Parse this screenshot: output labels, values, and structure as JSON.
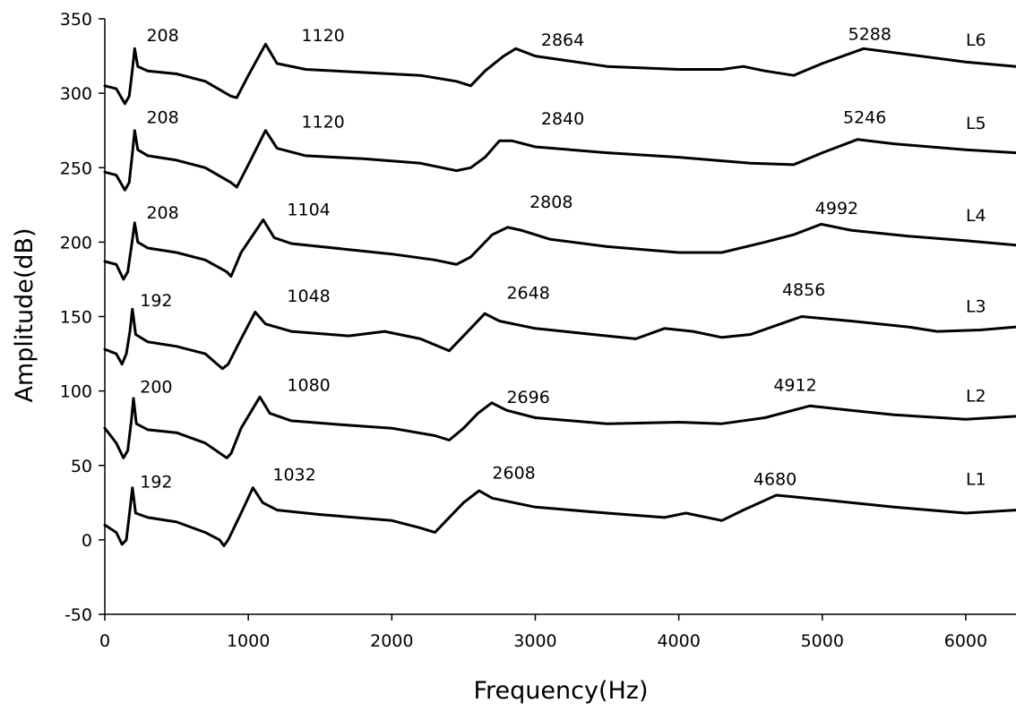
{
  "chart_data": {
    "type": "line",
    "title": "",
    "xlabel": "Frequency(Hz)",
    "ylabel": "Amplitude(dB)",
    "xlim": [
      0,
      6350
    ],
    "ylim": [
      -50,
      350
    ],
    "xticks": [
      0,
      1000,
      2000,
      3000,
      4000,
      5000,
      6000
    ],
    "yticks": [
      -50,
      0,
      50,
      100,
      150,
      200,
      250,
      300,
      350
    ],
    "grid": false,
    "legend": "none",
    "line_color": "#000000",
    "series": [
      {
        "name": "L1",
        "peak_labels": [
          "192",
          "1032",
          "2608",
          "4680"
        ],
        "points": [
          [
            0,
            10
          ],
          [
            80,
            5
          ],
          [
            120,
            -3
          ],
          [
            150,
            0
          ],
          [
            175,
            20
          ],
          [
            192,
            35
          ],
          [
            215,
            18
          ],
          [
            300,
            15
          ],
          [
            500,
            12
          ],
          [
            700,
            5
          ],
          [
            800,
            0
          ],
          [
            830,
            -4
          ],
          [
            860,
            0
          ],
          [
            950,
            18
          ],
          [
            1032,
            35
          ],
          [
            1100,
            25
          ],
          [
            1200,
            20
          ],
          [
            1500,
            17
          ],
          [
            2000,
            13
          ],
          [
            2200,
            8
          ],
          [
            2300,
            5
          ],
          [
            2400,
            15
          ],
          [
            2500,
            25
          ],
          [
            2608,
            33
          ],
          [
            2700,
            28
          ],
          [
            3000,
            22
          ],
          [
            3500,
            18
          ],
          [
            3900,
            15
          ],
          [
            4050,
            18
          ],
          [
            4300,
            13
          ],
          [
            4450,
            20
          ],
          [
            4680,
            30
          ],
          [
            5000,
            27
          ],
          [
            5500,
            22
          ],
          [
            6000,
            18
          ],
          [
            6350,
            20
          ]
        ]
      },
      {
        "name": "L2",
        "peak_labels": [
          "200",
          "1080",
          "2696",
          "4912"
        ],
        "points": [
          [
            0,
            75
          ],
          [
            80,
            65
          ],
          [
            130,
            55
          ],
          [
            160,
            60
          ],
          [
            185,
            80
          ],
          [
            200,
            95
          ],
          [
            220,
            78
          ],
          [
            300,
            74
          ],
          [
            500,
            72
          ],
          [
            700,
            65
          ],
          [
            850,
            55
          ],
          [
            880,
            58
          ],
          [
            950,
            75
          ],
          [
            1080,
            96
          ],
          [
            1150,
            85
          ],
          [
            1300,
            80
          ],
          [
            1700,
            77
          ],
          [
            2000,
            75
          ],
          [
            2300,
            70
          ],
          [
            2400,
            67
          ],
          [
            2500,
            75
          ],
          [
            2600,
            85
          ],
          [
            2696,
            92
          ],
          [
            2800,
            87
          ],
          [
            3000,
            82
          ],
          [
            3500,
            78
          ],
          [
            4000,
            79
          ],
          [
            4300,
            78
          ],
          [
            4600,
            82
          ],
          [
            4912,
            90
          ],
          [
            5200,
            87
          ],
          [
            5500,
            84
          ],
          [
            6000,
            81
          ],
          [
            6350,
            83
          ]
        ]
      },
      {
        "name": "L3",
        "peak_labels": [
          "192",
          "1048",
          "2648",
          "4856"
        ],
        "points": [
          [
            0,
            128
          ],
          [
            80,
            125
          ],
          [
            120,
            118
          ],
          [
            150,
            125
          ],
          [
            175,
            140
          ],
          [
            192,
            155
          ],
          [
            215,
            138
          ],
          [
            300,
            133
          ],
          [
            500,
            130
          ],
          [
            700,
            125
          ],
          [
            820,
            115
          ],
          [
            860,
            118
          ],
          [
            950,
            135
          ],
          [
            1048,
            153
          ],
          [
            1120,
            145
          ],
          [
            1300,
            140
          ],
          [
            1700,
            137
          ],
          [
            1950,
            140
          ],
          [
            2200,
            135
          ],
          [
            2400,
            127
          ],
          [
            2500,
            137
          ],
          [
            2648,
            152
          ],
          [
            2750,
            147
          ],
          [
            3000,
            142
          ],
          [
            3500,
            137
          ],
          [
            3700,
            135
          ],
          [
            3900,
            142
          ],
          [
            4100,
            140
          ],
          [
            4300,
            136
          ],
          [
            4500,
            138
          ],
          [
            4856,
            150
          ],
          [
            5200,
            147
          ],
          [
            5600,
            143
          ],
          [
            5800,
            140
          ],
          [
            6100,
            141
          ],
          [
            6350,
            143
          ]
        ]
      },
      {
        "name": "L4",
        "peak_labels": [
          "208",
          "1104",
          "2808",
          "4992"
        ],
        "points": [
          [
            0,
            187
          ],
          [
            80,
            185
          ],
          [
            130,
            175
          ],
          [
            160,
            180
          ],
          [
            190,
            200
          ],
          [
            208,
            213
          ],
          [
            230,
            200
          ],
          [
            300,
            196
          ],
          [
            500,
            193
          ],
          [
            700,
            188
          ],
          [
            850,
            180
          ],
          [
            880,
            177
          ],
          [
            950,
            193
          ],
          [
            1104,
            215
          ],
          [
            1180,
            203
          ],
          [
            1300,
            199
          ],
          [
            1700,
            195
          ],
          [
            2000,
            192
          ],
          [
            2300,
            188
          ],
          [
            2450,
            185
          ],
          [
            2550,
            190
          ],
          [
            2700,
            205
          ],
          [
            2808,
            210
          ],
          [
            2900,
            208
          ],
          [
            3100,
            202
          ],
          [
            3500,
            197
          ],
          [
            4000,
            193
          ],
          [
            4300,
            193
          ],
          [
            4600,
            200
          ],
          [
            4800,
            205
          ],
          [
            4992,
            212
          ],
          [
            5200,
            208
          ],
          [
            5600,
            204
          ],
          [
            6000,
            201
          ],
          [
            6350,
            198
          ]
        ]
      },
      {
        "name": "L5",
        "peak_labels": [
          "208",
          "1120",
          "2840",
          "5246"
        ],
        "points": [
          [
            0,
            247
          ],
          [
            80,
            245
          ],
          [
            140,
            235
          ],
          [
            170,
            240
          ],
          [
            195,
            262
          ],
          [
            208,
            275
          ],
          [
            230,
            262
          ],
          [
            300,
            258
          ],
          [
            500,
            255
          ],
          [
            700,
            250
          ],
          [
            880,
            240
          ],
          [
            920,
            237
          ],
          [
            1000,
            252
          ],
          [
            1120,
            275
          ],
          [
            1200,
            263
          ],
          [
            1400,
            258
          ],
          [
            1800,
            256
          ],
          [
            2200,
            253
          ],
          [
            2450,
            248
          ],
          [
            2550,
            250
          ],
          [
            2650,
            257
          ],
          [
            2750,
            268
          ],
          [
            2840,
            268
          ],
          [
            3000,
            264
          ],
          [
            3500,
            260
          ],
          [
            4000,
            257
          ],
          [
            4500,
            253
          ],
          [
            4800,
            252
          ],
          [
            5000,
            260
          ],
          [
            5246,
            269
          ],
          [
            5500,
            266
          ],
          [
            6000,
            262
          ],
          [
            6350,
            260
          ]
        ]
      },
      {
        "name": "L6",
        "peak_labels": [
          "208",
          "1120",
          "2864",
          "5288"
        ],
        "points": [
          [
            0,
            305
          ],
          [
            80,
            303
          ],
          [
            140,
            293
          ],
          [
            170,
            298
          ],
          [
            195,
            318
          ],
          [
            208,
            330
          ],
          [
            230,
            318
          ],
          [
            300,
            315
          ],
          [
            500,
            313
          ],
          [
            700,
            308
          ],
          [
            880,
            298
          ],
          [
            920,
            297
          ],
          [
            1000,
            312
          ],
          [
            1120,
            333
          ],
          [
            1200,
            320
          ],
          [
            1400,
            316
          ],
          [
            1800,
            314
          ],
          [
            2200,
            312
          ],
          [
            2450,
            308
          ],
          [
            2550,
            305
          ],
          [
            2650,
            315
          ],
          [
            2780,
            325
          ],
          [
            2864,
            330
          ],
          [
            3000,
            325
          ],
          [
            3500,
            318
          ],
          [
            4000,
            316
          ],
          [
            4300,
            316
          ],
          [
            4450,
            318
          ],
          [
            4600,
            315
          ],
          [
            4800,
            312
          ],
          [
            5000,
            320
          ],
          [
            5288,
            330
          ],
          [
            5600,
            326
          ],
          [
            6000,
            321
          ],
          [
            6350,
            318
          ]
        ]
      }
    ],
    "annotations": [
      {
        "text": "208",
        "x": 290,
        "y": 335
      },
      {
        "text": "1120",
        "x": 1370,
        "y": 335
      },
      {
        "text": "2864",
        "x": 3040,
        "y": 332
      },
      {
        "text": "5288",
        "x": 5180,
        "y": 336
      },
      {
        "text": "L6",
        "x": 6000,
        "y": 332
      },
      {
        "text": "208",
        "x": 290,
        "y": 280
      },
      {
        "text": "1120",
        "x": 1370,
        "y": 277
      },
      {
        "text": "2840",
        "x": 3040,
        "y": 279
      },
      {
        "text": "5246",
        "x": 5145,
        "y": 280
      },
      {
        "text": "L5",
        "x": 6000,
        "y": 276
      },
      {
        "text": "208",
        "x": 290,
        "y": 216
      },
      {
        "text": "1104",
        "x": 1270,
        "y": 218
      },
      {
        "text": "2808",
        "x": 2960,
        "y": 223
      },
      {
        "text": "4992",
        "x": 4950,
        "y": 219
      },
      {
        "text": "L4",
        "x": 6000,
        "y": 214
      },
      {
        "text": "192",
        "x": 245,
        "y": 157
      },
      {
        "text": "1048",
        "x": 1270,
        "y": 160
      },
      {
        "text": "2648",
        "x": 2800,
        "y": 162
      },
      {
        "text": "4856",
        "x": 4720,
        "y": 164
      },
      {
        "text": "L3",
        "x": 6000,
        "y": 153
      },
      {
        "text": "200",
        "x": 245,
        "y": 99
      },
      {
        "text": "1080",
        "x": 1270,
        "y": 100
      },
      {
        "text": "2696",
        "x": 2800,
        "y": 92
      },
      {
        "text": "4912",
        "x": 4660,
        "y": 100
      },
      {
        "text": "L2",
        "x": 6000,
        "y": 93
      },
      {
        "text": "192",
        "x": 245,
        "y": 35
      },
      {
        "text": "1032",
        "x": 1170,
        "y": 40
      },
      {
        "text": "2608",
        "x": 2700,
        "y": 41
      },
      {
        "text": "4680",
        "x": 4520,
        "y": 37
      },
      {
        "text": "L1",
        "x": 6000,
        "y": 37
      }
    ]
  }
}
